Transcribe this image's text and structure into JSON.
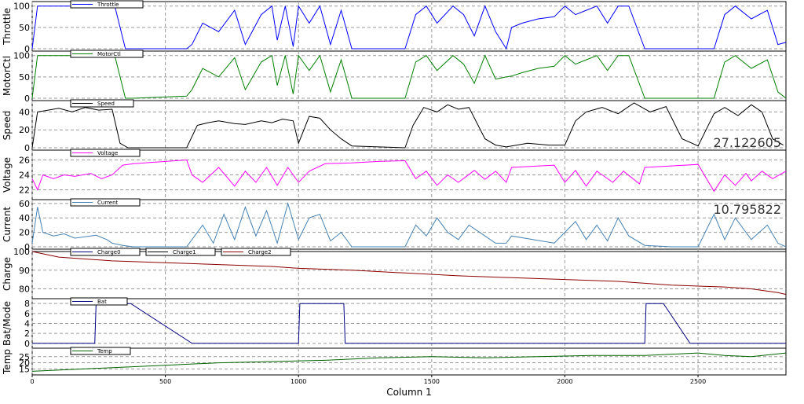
{
  "chart_data": {
    "type": "line",
    "xlabel": "Column 1",
    "xlim": [
      0,
      2830
    ],
    "xticks": [
      0,
      500,
      1000,
      1500,
      2000,
      2500
    ],
    "grid": true,
    "legend_placement": "top-left",
    "panels": [
      {
        "ylabel": "Throttle",
        "ylim": [
          0,
          105
        ],
        "yticks": [
          0,
          50,
          100
        ],
        "series": [
          {
            "name": "Throttle",
            "color": "#0000ff",
            "x": [
              0,
              20,
              40,
              80,
              100,
              160,
              260,
              300,
              310,
              350,
              380,
              580,
              600,
              640,
              700,
              760,
              800,
              860,
              900,
              920,
              950,
              980,
              1000,
              1040,
              1080,
              1120,
              1160,
              1200,
              1400,
              1440,
              1480,
              1520,
              1580,
              1620,
              1660,
              1700,
              1740,
              1780,
              1800,
              1840,
              1900,
              1960,
              2000,
              2040,
              2080,
              2120,
              2160,
              2200,
              2240,
              2300,
              2400,
              2480,
              2560,
              2600,
              2640,
              2700,
              2760,
              2800,
              2830
            ],
            "y": [
              0,
              100,
              100,
              100,
              100,
              100,
              100,
              100,
              100,
              0,
              0,
              0,
              10,
              60,
              40,
              90,
              10,
              80,
              100,
              20,
              100,
              5,
              100,
              60,
              100,
              10,
              90,
              0,
              0,
              80,
              100,
              60,
              100,
              80,
              30,
              100,
              40,
              0,
              50,
              60,
              70,
              75,
              100,
              80,
              90,
              100,
              60,
              100,
              100,
              0,
              0,
              0,
              0,
              80,
              100,
              70,
              90,
              10,
              15
            ]
          }
        ]
      },
      {
        "ylabel": "MotorCtl",
        "ylim": [
          0,
          105
        ],
        "yticks": [
          0,
          50,
          100
        ],
        "series": [
          {
            "name": "MotorCtl",
            "color": "#008000",
            "x": [
              0,
              20,
              40,
              80,
              100,
              160,
              260,
              300,
              310,
              350,
              380,
              580,
              600,
              640,
              700,
              760,
              800,
              860,
              900,
              920,
              950,
              980,
              1000,
              1040,
              1080,
              1120,
              1160,
              1200,
              1400,
              1440,
              1480,
              1520,
              1580,
              1620,
              1660,
              1700,
              1740,
              1780,
              1800,
              1840,
              1900,
              1960,
              2000,
              2040,
              2080,
              2120,
              2160,
              2200,
              2240,
              2300,
              2400,
              2480,
              2560,
              2600,
              2640,
              2700,
              2760,
              2800,
              2830
            ],
            "y": [
              0,
              100,
              100,
              100,
              100,
              100,
              100,
              100,
              100,
              0,
              0,
              5,
              20,
              70,
              50,
              95,
              20,
              85,
              100,
              30,
              100,
              10,
              100,
              65,
              100,
              15,
              90,
              0,
              0,
              85,
              100,
              65,
              100,
              80,
              35,
              100,
              45,
              50,
              52,
              60,
              70,
              75,
              100,
              80,
              90,
              100,
              65,
              100,
              100,
              0,
              0,
              0,
              0,
              85,
              100,
              70,
              90,
              15,
              0
            ]
          }
        ]
      },
      {
        "ylabel": "Speed",
        "ylim": [
          0,
          50
        ],
        "yticks": [
          0,
          20,
          40
        ],
        "annotation": "27.122605",
        "series": [
          {
            "name": "Speed",
            "color": "#000000",
            "x": [
              0,
              20,
              60,
              100,
              150,
              200,
              250,
              300,
              330,
              360,
              400,
              580,
              620,
              660,
              700,
              760,
              800,
              860,
              900,
              940,
              980,
              1000,
              1040,
              1080,
              1120,
              1160,
              1200,
              1400,
              1430,
              1470,
              1520,
              1560,
              1600,
              1640,
              1700,
              1740,
              1780,
              1800,
              1860,
              1940,
              2000,
              2040,
              2080,
              2140,
              2200,
              2260,
              2320,
              2380,
              2440,
              2500,
              2560,
              2600,
              2650,
              2700,
              2740,
              2780,
              2820
            ],
            "y": [
              0,
              40,
              42,
              44,
              40,
              45,
              42,
              43,
              5,
              0,
              0,
              0,
              25,
              28,
              30,
              27,
              26,
              30,
              28,
              32,
              30,
              5,
              35,
              33,
              20,
              10,
              2,
              0,
              25,
              45,
              40,
              48,
              43,
              45,
              10,
              3,
              1,
              2,
              5,
              3,
              3,
              30,
              40,
              45,
              38,
              50,
              40,
              46,
              10,
              2,
              38,
              45,
              36,
              48,
              40,
              10,
              3
            ]
          }
        ]
      },
      {
        "ylabel": "Voltage",
        "ylim": [
          21,
          27
        ],
        "yticks": [
          22,
          24,
          26
        ],
        "series": [
          {
            "name": "Voltage",
            "color": "#ff00ff",
            "x": [
              0,
              20,
              40,
              80,
              120,
              160,
              220,
              260,
              300,
              340,
              380,
              580,
              600,
              640,
              700,
              760,
              800,
              840,
              880,
              920,
              960,
              1000,
              1040,
              1100,
              1200,
              1300,
              1400,
              1440,
              1480,
              1520,
              1560,
              1600,
              1660,
              1700,
              1740,
              1780,
              1800,
              1960,
              2000,
              2040,
              2080,
              2120,
              2180,
              2220,
              2280,
              2300,
              2400,
              2500,
              2560,
              2600,
              2640,
              2680,
              2700,
              2740,
              2780,
              2830
            ],
            "y": [
              23.5,
              22,
              24,
              23.5,
              24,
              23.8,
              24.2,
              23.5,
              24,
              25.3,
              25.5,
              26,
              24,
              23,
              25,
              22.5,
              24.5,
              23,
              25,
              22.6,
              25,
              23,
              24.5,
              25.5,
              25.6,
              25.8,
              25.9,
              23.5,
              24.5,
              22.6,
              24,
              23,
              24.6,
              23.4,
              24.5,
              23,
              25,
              25.3,
              23,
              24.6,
              22.5,
              24.5,
              23,
              24.5,
              22.8,
              25,
              25.2,
              25.4,
              21.8,
              24,
              22.6,
              24.2,
              23.2,
              24.5,
              23.5,
              24.5
            ]
          }
        ]
      },
      {
        "ylabel": "Current",
        "ylim": [
          0,
          62
        ],
        "yticks": [
          0,
          20,
          40,
          60
        ],
        "annotation": "10.795822",
        "series": [
          {
            "name": "Current",
            "color": "#4682b4",
            "x": [
              0,
              20,
              40,
              80,
              120,
              160,
              200,
              240,
              280,
              300,
              340,
              380,
              580,
              600,
              640,
              680,
              720,
              760,
              800,
              840,
              880,
              920,
              960,
              1000,
              1040,
              1080,
              1120,
              1160,
              1200,
              1400,
              1440,
              1480,
              1520,
              1560,
              1600,
              1640,
              1700,
              1740,
              1780,
              1800,
              1960,
              2000,
              2040,
              2080,
              2120,
              2160,
              2200,
              2240,
              2300,
              2400,
              2500,
              2560,
              2600,
              2640,
              2700,
              2760,
              2800,
              2830
            ],
            "y": [
              5,
              55,
              20,
              15,
              18,
              12,
              14,
              16,
              10,
              5,
              2,
              0,
              0,
              10,
              30,
              5,
              45,
              10,
              55,
              15,
              50,
              5,
              60,
              10,
              40,
              45,
              8,
              20,
              0,
              0,
              30,
              15,
              40,
              20,
              10,
              30,
              15,
              5,
              5,
              15,
              5,
              20,
              35,
              10,
              30,
              8,
              40,
              15,
              2,
              0,
              0,
              45,
              10,
              40,
              10,
              30,
              5,
              0
            ]
          }
        ]
      },
      {
        "ylabel": "Charge",
        "ylim": [
          76,
          100
        ],
        "yticks": [
          80,
          90,
          100
        ],
        "series": [
          {
            "name": "Charge0",
            "color": "#000080",
            "x": [
              0,
              2830
            ],
            "y": [
              100,
              100
            ]
          },
          {
            "name": "Charge1",
            "color": "#000000",
            "x": [
              0,
              2830
            ],
            "y": [
              100,
              100
            ]
          },
          {
            "name": "Charge2",
            "color": "#8b0000",
            "x": [
              0,
              100,
              300,
              500,
              700,
              900,
              1000,
              1200,
              1400,
              1600,
              1800,
              2000,
              2200,
              2400,
              2600,
              2700,
              2800,
              2830
            ],
            "y": [
              100,
              97,
              95,
              94,
              93,
              92,
              91,
              90,
              88.5,
              87,
              86,
              85,
              84,
              82,
              81,
              80,
              78,
              77
            ]
          }
        ]
      },
      {
        "ylabel": "Bat/Mode",
        "ylim": [
          -0.5,
          8.5
        ],
        "yticks": [
          0,
          2,
          4,
          6,
          8
        ],
        "series": [
          {
            "name": "Bat",
            "color": "#000080",
            "x": [
              0,
              235,
              240,
              370,
              600,
              1000,
              1005,
              1170,
              1175,
              2300,
              2305,
              2370,
              2470,
              2830
            ],
            "y": [
              0,
              0,
              8,
              8,
              0,
              0,
              8,
              8,
              0,
              0,
              8,
              8,
              0,
              0
            ]
          }
        ]
      },
      {
        "ylabel": "Temp",
        "ylim": [
          12,
          30
        ],
        "yticks": [
          15,
          20,
          25
        ],
        "series": [
          {
            "name": "Temp",
            "color": "#006400",
            "x": [
              0,
              200,
              500,
              700,
              900,
              1100,
              1300,
              1500,
              1700,
              1900,
              2100,
              2300,
              2500,
              2600,
              2700,
              2830
            ],
            "y": [
              13,
              15,
              18,
              20,
              21,
              22,
              24,
              25,
              24,
              25,
              26,
              26,
              28,
              26,
              25,
              28
            ]
          }
        ]
      }
    ]
  }
}
